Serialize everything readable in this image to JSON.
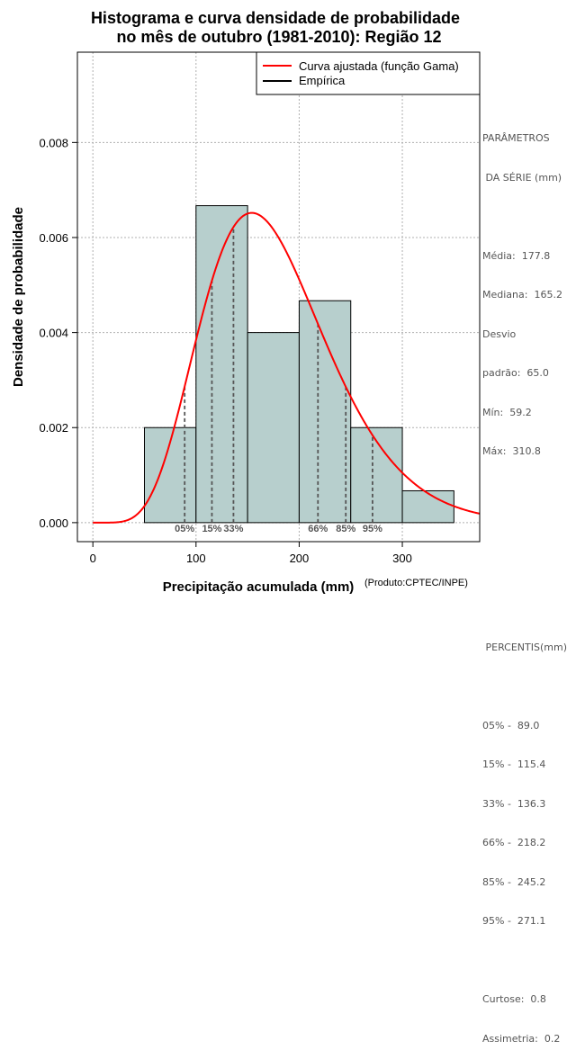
{
  "chart_data": {
    "type": "bar",
    "title_line1": "Histograma e curva densidade de probabilidade",
    "title_line2": "no mês de outubro (1981-2010): Região 12",
    "xlabel": "Precipitação acumulada (mm)",
    "ylabel": "Densidade de probabilidade",
    "credit": "(Produto:CPTEC/INPE)",
    "xlim": [
      -15,
      375
    ],
    "ylim": [
      -0.0004,
      0.0099
    ],
    "x_ticks": [
      0,
      100,
      200,
      300
    ],
    "y_ticks": [
      0.0,
      0.002,
      0.004,
      0.006,
      0.008
    ],
    "y_tick_labels": [
      "0.000",
      "0.002",
      "0.004",
      "0.006",
      "0.008"
    ],
    "grid": true,
    "bins": [
      {
        "start": 50,
        "end": 100,
        "density": 0.002
      },
      {
        "start": 100,
        "end": 150,
        "density": 0.00667
      },
      {
        "start": 150,
        "end": 200,
        "density": 0.004
      },
      {
        "start": 200,
        "end": 250,
        "density": 0.00467
      },
      {
        "start": 250,
        "end": 300,
        "density": 0.002
      },
      {
        "start": 300,
        "end": 350,
        "density": 0.00067
      }
    ],
    "bar_color": "#b7cfcd",
    "curve_color": "#ff0000",
    "gamma_fit": {
      "shape": 7.5,
      "scale": 23.7
    },
    "legend": {
      "position": "top-right",
      "entries": [
        {
          "label": "Curva ajustada (função Gama)",
          "color": "#ff0000"
        },
        {
          "label": "Empírica",
          "color": "#000000"
        }
      ]
    },
    "percentile_lines": [
      {
        "label": "05%",
        "value": 89.0
      },
      {
        "label": "15%",
        "value": 115.4
      },
      {
        "label": "33%",
        "value": 136.3
      },
      {
        "label": "66%",
        "value": 218.2
      },
      {
        "label": "85%",
        "value": 245.2
      },
      {
        "label": "95%",
        "value": 271.1
      }
    ]
  },
  "side_panel": {
    "params_header_1": "PARÂMETROS",
    "params_header_2": " DA SÉRIE (mm)",
    "media": "Média:  177.8",
    "mediana": "Mediana:  165.2",
    "desvio_1": "Desvio",
    "desvio_2": "padrão:  65.0",
    "min": "Mín:  59.2",
    "max": "Máx:  310.8",
    "percentis_header": " PERCENTIS(mm)",
    "p05": "05% -  89.0",
    "p15": "15% -  115.4",
    "p33": "33% -  136.3",
    "p66": "66% -  218.2",
    "p85": "85% -  245.2",
    "p95": "95% -  271.1",
    "curtose": "Curtose:  0.8",
    "assimetria": "Assimetria:  0.2"
  }
}
